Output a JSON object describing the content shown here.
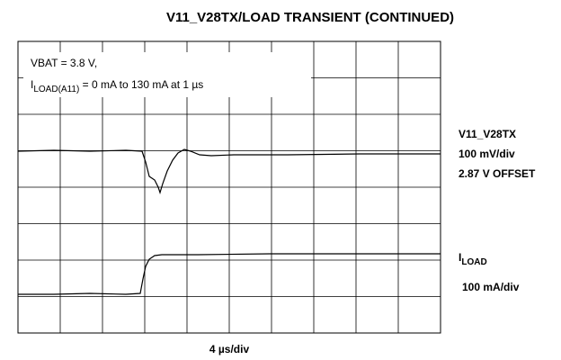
{
  "title": "V11_V28TX/LOAD TRANSIENT (CONTINUED)",
  "annotation": {
    "line1": "VBAT = 3.8 V,",
    "line2": {
      "symbol": "I",
      "subscript": "LOAD(A11)",
      "rest": " = 0 mA to 130 mA at 1 µs"
    }
  },
  "traces": [
    {
      "name": "V11_V28TX",
      "scale": "100 mV/div",
      "offset": "2.87 V OFFSET"
    },
    {
      "symbol": "I",
      "subscript": "LOAD",
      "scale": "100 mA/div"
    }
  ],
  "x_scale": "4 µs/div"
}
